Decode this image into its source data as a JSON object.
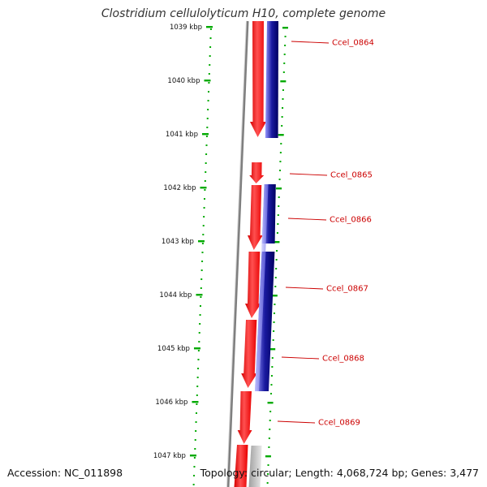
{
  "title": "Clostridium cellulolyticum H10, complete genome",
  "accession": "Accession: NC_011898",
  "topology": "Topology: circular; Length: 4,068,724 bp; Genes: 3,477",
  "ruler": {
    "labels": [
      "1039 kbp",
      "1040 kbp",
      "1041 kbp",
      "1042 kbp",
      "1043 kbp",
      "1044 kbp",
      "1045 kbp",
      "1046 kbp",
      "1047 kbp"
    ]
  },
  "colors": {
    "forward_strand": "#ff0000",
    "reverse_strand": "#000080",
    "reverse_light": "#8080ff",
    "gene_label": "#cc0000",
    "tick_marks": "#00aa00",
    "backbone": "#808080"
  },
  "genes": [
    {
      "label": "Ccel_0864"
    },
    {
      "label": "Ccel_0865"
    },
    {
      "label": "Ccel_0866"
    },
    {
      "label": "Ccel_0867"
    },
    {
      "label": "Ccel_0868"
    },
    {
      "label": "Ccel_0869"
    }
  ]
}
